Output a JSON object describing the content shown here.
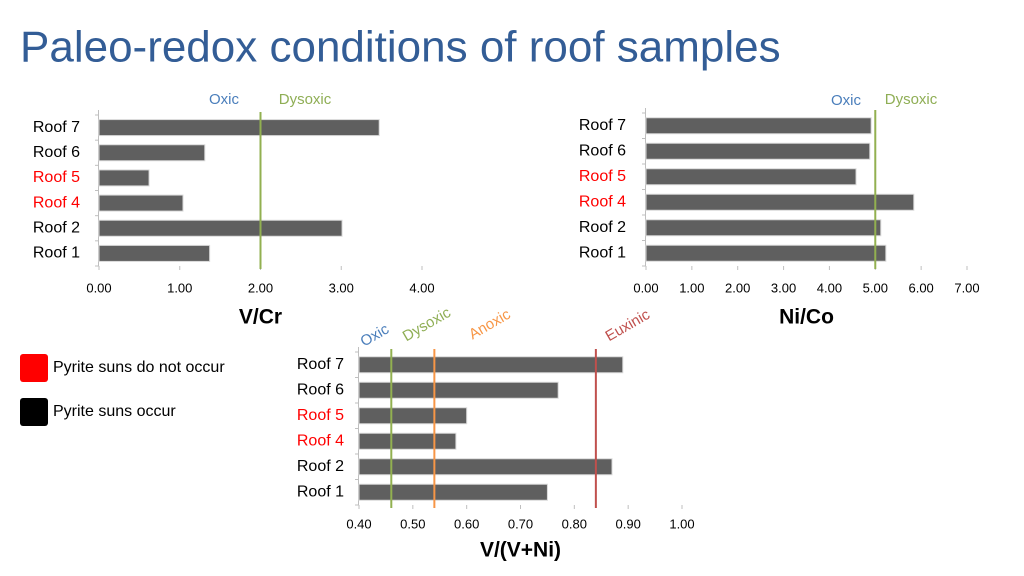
{
  "title": "Paleo-redox conditions of roof samples",
  "legend": [
    {
      "label": "Pyrite suns do not occur",
      "color": "#ff0000"
    },
    {
      "label": "Pyrite suns occur",
      "color": "#000000"
    }
  ],
  "chart_data": [
    {
      "type": "hbar",
      "xlabel": "V/Cr",
      "categories": [
        "Roof 7",
        "Roof 6",
        "Roof 5",
        "Roof 4",
        "Roof 2",
        "Roof 1"
      ],
      "category_colors": [
        "#000000",
        "#000000",
        "#ff0000",
        "#ff0000",
        "#000000",
        "#000000"
      ],
      "values": [
        3.47,
        1.31,
        0.62,
        1.04,
        3.01,
        1.37
      ],
      "color": "#5f5f5f",
      "xlim": [
        0,
        4
      ],
      "xticks": [
        {
          "value": 0,
          "label": "0.00"
        },
        {
          "value": 1,
          "label": "1.00"
        },
        {
          "value": 2,
          "label": "2.00"
        },
        {
          "value": 3,
          "label": "3.00"
        },
        {
          "value": 4,
          "label": "4.00"
        }
      ],
      "thresholds": [
        {
          "value": 2,
          "color": "#92b050"
        }
      ],
      "zones": [
        {
          "label": "Oxic",
          "color": "#4a7ebb"
        },
        {
          "label": "Dysoxic",
          "color": "#8fae55"
        }
      ]
    },
    {
      "type": "hbar",
      "xlabel": "Ni/Co",
      "categories": [
        "Roof 7",
        "Roof 6",
        "Roof 5",
        "Roof 4",
        "Roof 2",
        "Roof 1"
      ],
      "category_colors": [
        "#000000",
        "#000000",
        "#ff0000",
        "#ff0000",
        "#000000",
        "#000000"
      ],
      "values": [
        4.91,
        4.88,
        4.58,
        5.84,
        5.12,
        5.23
      ],
      "color": "#5f5f5f",
      "xlim": [
        0,
        7
      ],
      "xticks": [
        {
          "value": 0,
          "label": "0.00"
        },
        {
          "value": 1,
          "label": "1.00"
        },
        {
          "value": 2,
          "label": "2.00"
        },
        {
          "value": 3,
          "label": "3.00"
        },
        {
          "value": 4,
          "label": "4.00"
        },
        {
          "value": 5,
          "label": "5.00"
        },
        {
          "value": 6,
          "label": "6.00"
        },
        {
          "value": 7,
          "label": "7.00"
        }
      ],
      "thresholds": [
        {
          "value": 5,
          "color": "#92b050"
        }
      ],
      "zones": [
        {
          "label": "Oxic",
          "color": "#4a7ebb"
        },
        {
          "label": "Dysoxic",
          "color": "#8fae55"
        }
      ]
    },
    {
      "type": "hbar",
      "xlabel": "V/(V+Ni)",
      "categories": [
        "Roof 7",
        "Roof 6",
        "Roof 5",
        "Roof 4",
        "Roof 2",
        "Roof 1"
      ],
      "category_colors": [
        "#000000",
        "#000000",
        "#ff0000",
        "#ff0000",
        "#000000",
        "#000000"
      ],
      "values": [
        0.89,
        0.77,
        0.6,
        0.58,
        0.87,
        0.75
      ],
      "color": "#5f5f5f",
      "xlim": [
        0.4,
        1.0
      ],
      "xticks": [
        {
          "value": 0.4,
          "label": "0.40"
        },
        {
          "value": 0.5,
          "label": "0.50"
        },
        {
          "value": 0.6,
          "label": "0.60"
        },
        {
          "value": 0.7,
          "label": "0.70"
        },
        {
          "value": 0.8,
          "label": "0.80"
        },
        {
          "value": 0.9,
          "label": "0.90"
        },
        {
          "value": 1.0,
          "label": "1.00"
        }
      ],
      "thresholds": [
        {
          "value": 0.46,
          "color": "#92b050"
        },
        {
          "value": 0.54,
          "color": "#f79646"
        },
        {
          "value": 0.84,
          "color": "#c0504d"
        }
      ],
      "zones": [
        {
          "label": "Oxic",
          "color": "#4a7ebb"
        },
        {
          "label": "Dysoxic",
          "color": "#8fae55"
        },
        {
          "label": "Anoxic",
          "color": "#f79646"
        },
        {
          "label": "Euxinic",
          "color": "#c0504d"
        }
      ]
    }
  ]
}
